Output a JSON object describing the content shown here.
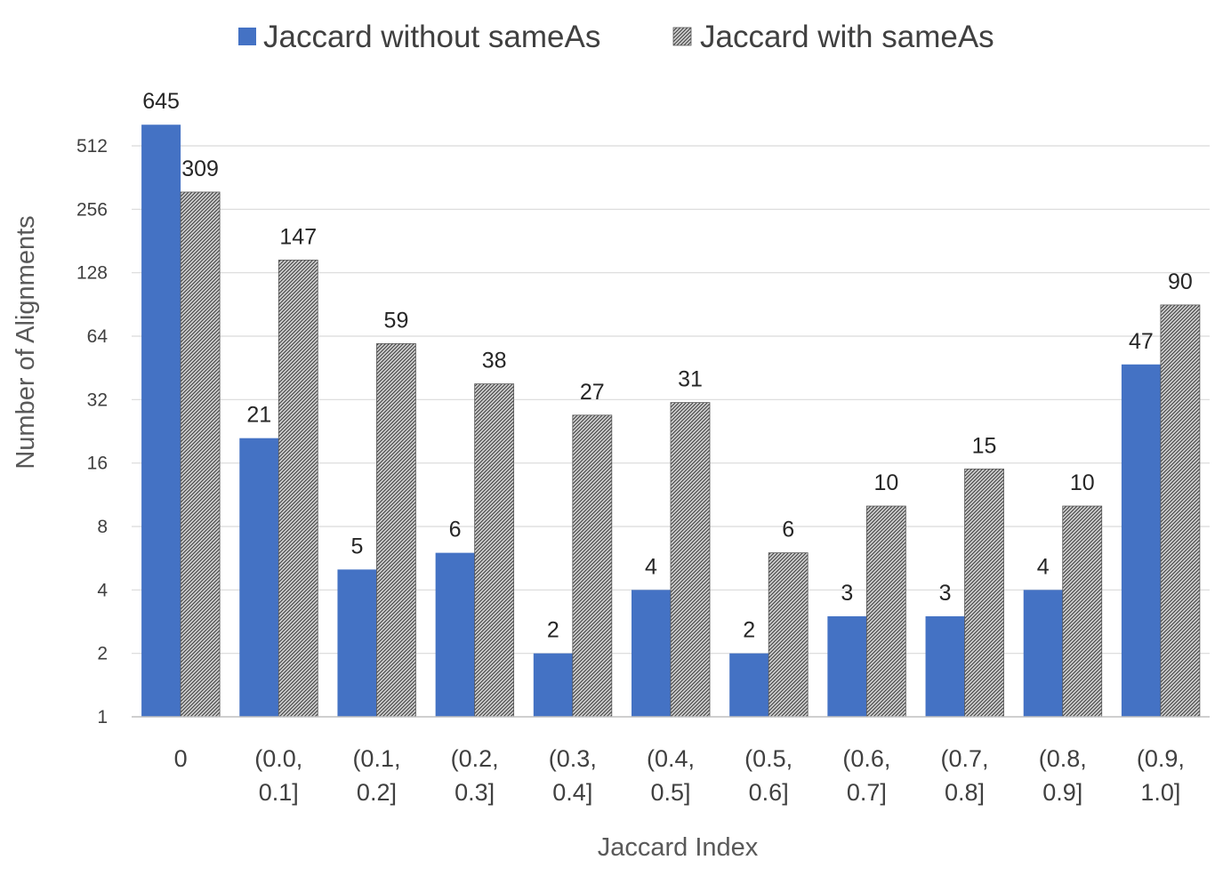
{
  "chart_data": {
    "type": "bar",
    "xlabel": "Jaccard Index",
    "ylabel": "Number of Alignments",
    "y_scale": "log2",
    "ylim": [
      1,
      645
    ],
    "y_ticks": [
      1,
      2,
      4,
      8,
      16,
      32,
      64,
      128,
      256,
      512
    ],
    "grid": true,
    "legend_position": "top",
    "categories": [
      [
        "0"
      ],
      [
        "(0.0,",
        "0.1]"
      ],
      [
        "(0.1,",
        "0.2]"
      ],
      [
        "(0.2,",
        "0.3]"
      ],
      [
        "(0.3,",
        "0.4]"
      ],
      [
        "(0.4,",
        "0.5]"
      ],
      [
        "(0.5,",
        "0.6]"
      ],
      [
        "(0.6,",
        "0.7]"
      ],
      [
        "(0.7,",
        "0.8]"
      ],
      [
        "(0.8,",
        "0.9]"
      ],
      [
        "(0.9,",
        "1.0]"
      ]
    ],
    "series": [
      {
        "name": "Jaccard without sameAs",
        "color": "#4472c4",
        "fill": "solid",
        "values": [
          645,
          21,
          5,
          6,
          2,
          4,
          2,
          3,
          3,
          4,
          47
        ]
      },
      {
        "name": "Jaccard with sameAs",
        "color": "#a6a6a6",
        "fill": "diagonal-hatch",
        "values": [
          309,
          147,
          59,
          38,
          27,
          31,
          6,
          10,
          15,
          10,
          90
        ]
      }
    ]
  }
}
